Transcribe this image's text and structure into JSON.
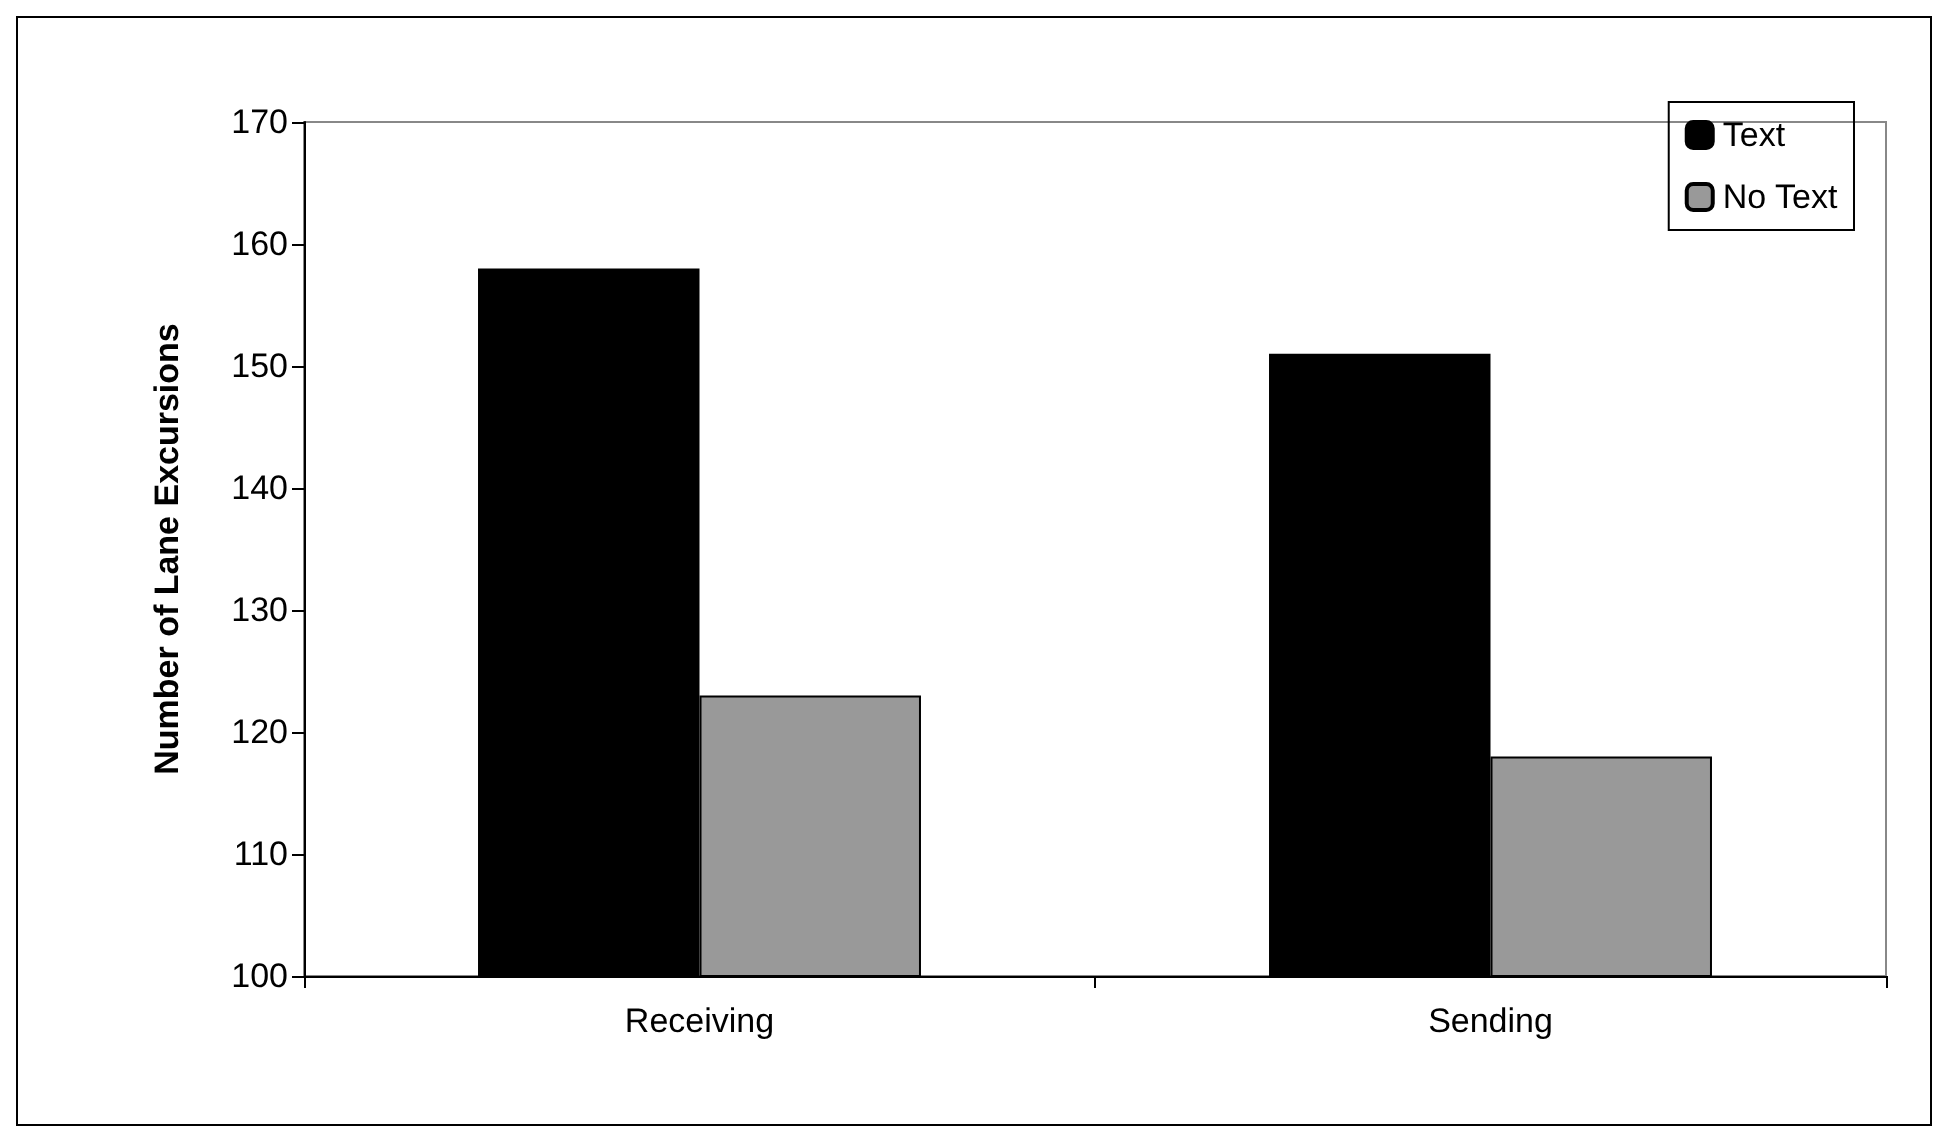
{
  "chart_data": {
    "type": "bar",
    "ylabel": "Number of Lane Excursions",
    "categories": [
      "Receiving",
      "Sending"
    ],
    "series": [
      {
        "name": "Text",
        "color": "#000000",
        "values": [
          158,
          151
        ]
      },
      {
        "name": "No Text",
        "color": "#999999",
        "values": [
          123,
          118
        ]
      }
    ],
    "ylim": [
      100,
      170
    ],
    "yticks": [
      100,
      110,
      120,
      130,
      140,
      150,
      160,
      170
    ],
    "grid": false,
    "legend": "top right"
  }
}
